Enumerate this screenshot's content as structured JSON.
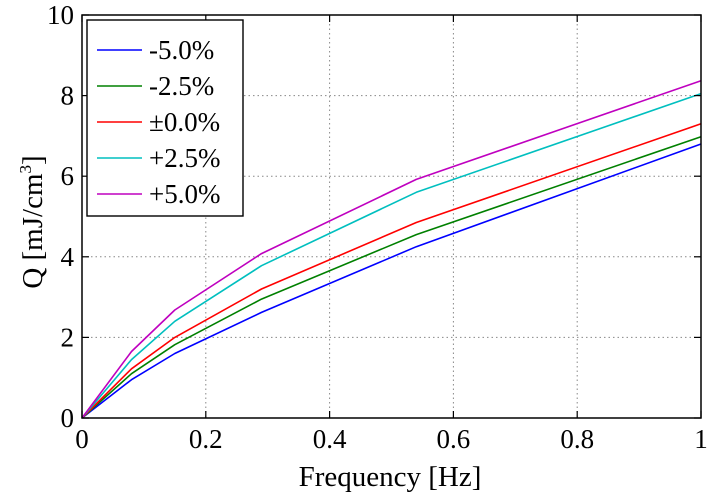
{
  "chart_data": {
    "type": "line",
    "xlabel": "Frequency [Hz]",
    "ylabel_main": "Q [mJ/cm",
    "ylabel_sup": "3",
    "ylabel_close": "]",
    "xlim": [
      0,
      1
    ],
    "ylim": [
      0,
      10
    ],
    "grid": true,
    "legend_position": "top-left",
    "x_ticks": [
      "0",
      "0.2",
      "0.4",
      "0.6",
      "0.8",
      "1"
    ],
    "x_tick_values": [
      0,
      0.2,
      0.4,
      0.6,
      0.8,
      1
    ],
    "y_ticks": [
      "0",
      "2",
      "4",
      "6",
      "8",
      "10"
    ],
    "y_tick_values": [
      0,
      2,
      4,
      6,
      8,
      10
    ],
    "x": [
      0,
      0.08,
      0.15,
      0.29,
      0.54,
      1.0
    ],
    "series": [
      {
        "name": "-5.0%",
        "color": "#0000ff",
        "values": [
          0,
          0.95,
          1.6,
          2.62,
          4.25,
          6.8
        ]
      },
      {
        "name": "-2.5%",
        "color": "#008000",
        "values": [
          0,
          1.1,
          1.82,
          2.95,
          4.55,
          6.98
        ]
      },
      {
        "name": "±0.0%",
        "color": "#ff0000",
        "values": [
          0,
          1.22,
          2.0,
          3.2,
          4.85,
          7.3
        ]
      },
      {
        "name": "+2.5%",
        "color": "#00bfbf",
        "values": [
          0,
          1.45,
          2.4,
          3.78,
          5.6,
          8.05
        ]
      },
      {
        "name": "+5.0%",
        "color": "#bf00bf",
        "values": [
          0,
          1.65,
          2.68,
          4.08,
          5.92,
          8.37
        ]
      }
    ]
  }
}
